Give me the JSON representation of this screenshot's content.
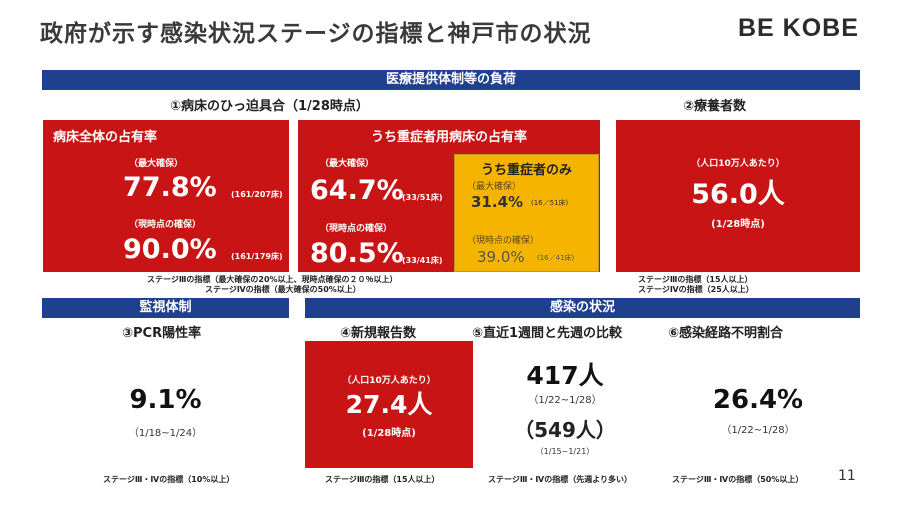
{
  "title": "政府が示す感染状況ステージの指標と神戸市の状況",
  "logo": "BE KOBE",
  "sec1": {
    "header": "医療提供体制等の負荷",
    "sub1": "①病床のひっ迫具合（1/28時点）",
    "sub2": "②療養者数",
    "boxA": {
      "title": "病床全体の占有率",
      "lbl1": "（最大確保）",
      "val1": "77.8%",
      "det1": "(161/207床)",
      "lbl2": "（現時点の確保）",
      "val2": "90.0%",
      "det2": "(161/179床)"
    },
    "boxB": {
      "title": "うち重症者用病床の占有率",
      "lbl1": "（最大確保）",
      "val1": "64.7%",
      "det1": "(33/51床)",
      "lbl2": "（現時点の確保）",
      "val2": "80.5%",
      "det2": "(33/41床)"
    },
    "boxC": {
      "title": "うち重症者のみ",
      "lbl1": "（最大確保）",
      "val1": "31.4%",
      "det1": "(16／51床)",
      "lbl2": "（現時点の確保）",
      "val2": "39.0%",
      "det2": "(16／41床)"
    },
    "boxD": {
      "lbl": "（人口10万人あたり）",
      "val": "56.0人",
      "date": "(1/28時点)"
    },
    "note1": "ステージⅢの指標（最大確保の20%以上、現時点確保の２０％以上）",
    "note2": "ステージⅣの指標（最大確保の50%以上）",
    "note3": "ステージⅢの指標（15人以上）",
    "note4": "ステージⅣの指標（25人以上）"
  },
  "sec2": {
    "header": "監視体制",
    "sub": "③PCR陽性率",
    "val": "9.1%",
    "date": "（1/18~1/24）",
    "note": "ステージⅢ・Ⅳの指標（10%以上）"
  },
  "sec3": {
    "header": "感染の状況",
    "sub4": "④新規報告数",
    "sub5": "⑤直近1週間と先週の比較",
    "sub6": "⑥感染経路不明割合",
    "box4": {
      "lbl": "（人口10万人あたり）",
      "val": "27.4人",
      "date": "(1/28時点)"
    },
    "c5": {
      "val1": "417人",
      "date1": "（1/22~1/28）",
      "val2": "（549人）",
      "date2": "（1/15~1/21）"
    },
    "c6": {
      "val": "26.4%",
      "date": "（1/22~1/28）"
    },
    "note4": "ステージⅢの指標（15人以上）",
    "note5": "ステージⅢ・Ⅳの指標（先週より多い）",
    "note6": "ステージⅢ・Ⅳの指標（50%以上）"
  },
  "page_number": "11"
}
